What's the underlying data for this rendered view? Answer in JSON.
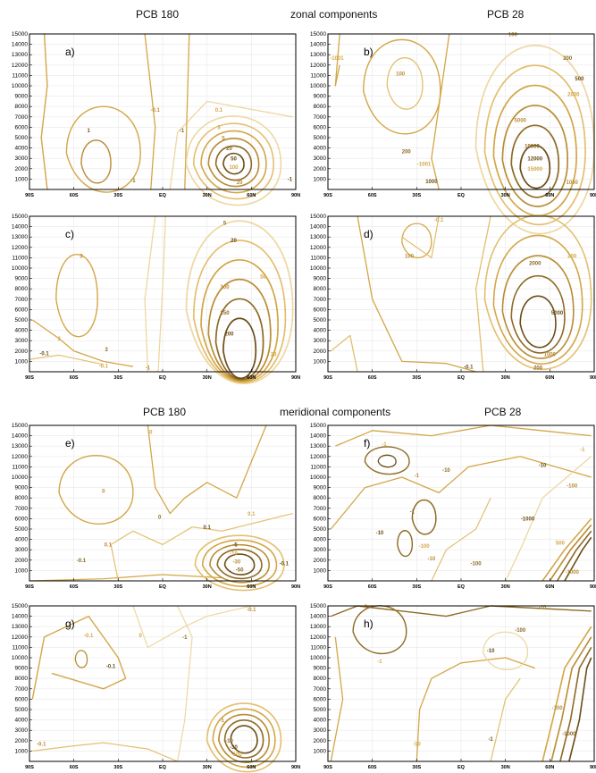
{
  "headers": {
    "top_left": "PCB 180",
    "top_center": "zonal components",
    "top_right": "PCB 28",
    "bottom_left": "PCB 180",
    "bottom_center": "meridional components",
    "bottom_right": "PCB 28"
  },
  "colors": {
    "light": "#eed7a1",
    "pale": "#e3bf6e",
    "mid": "#d3a646",
    "medium": "#b98c34",
    "dark": "#8e6a24",
    "darkest": "#6b4e18"
  },
  "axes": {
    "y_ticks": [
      "15000",
      "14000",
      "13000",
      "12000",
      "11000",
      "10000",
      "9000",
      "8000",
      "7000",
      "6000",
      "5000",
      "4000",
      "3000",
      "2000",
      "1000"
    ],
    "x_ticks": [
      "90S",
      "60S",
      "30S",
      "EQ",
      "30N",
      "60N",
      "90N"
    ],
    "y_range": [
      0,
      15000
    ],
    "x_range": [
      -90,
      90
    ]
  },
  "chart_data": [
    {
      "panel": "a)",
      "type": "contour",
      "component": "zonal",
      "compound": "PCB 180",
      "contour_levels": [
        {
          "label": "0.1",
          "x": 38,
          "y": 7500
        },
        {
          "label": "-0.1",
          "x": -5,
          "y": 7500
        },
        {
          "label": "-1",
          "x": 13,
          "y": 5500
        },
        {
          "label": "1",
          "x": -50,
          "y": 5500
        },
        {
          "label": "3",
          "x": 38,
          "y": 5800
        },
        {
          "label": "5",
          "x": 41,
          "y": 4800
        },
        {
          "label": "20",
          "x": 45,
          "y": 3800
        },
        {
          "label": "50",
          "x": 48,
          "y": 2800
        },
        {
          "label": "100",
          "x": 48,
          "y": 2000
        },
        {
          "label": "20",
          "x": 52,
          "y": 500
        },
        {
          "label": "-1",
          "x": -20,
          "y": 700
        },
        {
          "label": "-1",
          "x": 86,
          "y": 800
        }
      ]
    },
    {
      "panel": "b)",
      "type": "contour",
      "component": "zonal",
      "compound": "PCB 28",
      "contour_levels": [
        {
          "label": "-1001",
          "x": -84,
          "y": 12500
        },
        {
          "label": "100",
          "x": -41,
          "y": 11000
        },
        {
          "label": "200",
          "x": -37,
          "y": 3500
        },
        {
          "label": "1000",
          "x": -20,
          "y": 600
        },
        {
          "label": "-1001",
          "x": -25,
          "y": 2300
        },
        {
          "label": "100",
          "x": 35,
          "y": 14800
        },
        {
          "label": "200",
          "x": 72,
          "y": 12500
        },
        {
          "label": "500",
          "x": 80,
          "y": 10500
        },
        {
          "label": "2000",
          "x": 76,
          "y": 9000
        },
        {
          "label": "5000",
          "x": 40,
          "y": 6500
        },
        {
          "label": "10000",
          "x": 48,
          "y": 4000
        },
        {
          "label": "12000",
          "x": 50,
          "y": 2800
        },
        {
          "label": "15000",
          "x": 50,
          "y": 1800
        },
        {
          "label": "1000",
          "x": 75,
          "y": 500
        }
      ]
    },
    {
      "panel": "c)",
      "type": "contour",
      "component": "zonal",
      "compound": "PCB 180",
      "contour_levels": [
        {
          "label": "3",
          "x": -70,
          "y": 3000
        },
        {
          "label": "3",
          "x": -55,
          "y": 11000
        },
        {
          "label": "3",
          "x": -38,
          "y": 2000
        },
        {
          "label": "-0.1",
          "x": -80,
          "y": 1600
        },
        {
          "label": "-0.1",
          "x": -40,
          "y": 400
        },
        {
          "label": "-1",
          "x": -10,
          "y": 200
        },
        {
          "label": "5",
          "x": 42,
          "y": 14200
        },
        {
          "label": "20",
          "x": 48,
          "y": 12500
        },
        {
          "label": "50",
          "x": 68,
          "y": 9000
        },
        {
          "label": "100",
          "x": 42,
          "y": 8000
        },
        {
          "label": "150",
          "x": 42,
          "y": 5500
        },
        {
          "label": "200",
          "x": 45,
          "y": 3500
        },
        {
          "label": "20",
          "x": 75,
          "y": 1500
        }
      ]
    },
    {
      "panel": "d)",
      "type": "contour",
      "component": "zonal",
      "compound": "PCB 28",
      "contour_levels": [
        {
          "label": "-0.1",
          "x": -15,
          "y": 14500
        },
        {
          "label": "100",
          "x": -35,
          "y": 11000
        },
        {
          "label": "2000",
          "x": 50,
          "y": 10300
        },
        {
          "label": "5000",
          "x": 65,
          "y": 5500
        },
        {
          "label": "200",
          "x": 75,
          "y": 11000
        },
        {
          "label": "1000",
          "x": 60,
          "y": 1500
        },
        {
          "label": "200",
          "x": 52,
          "y": 200
        },
        {
          "label": "-0.1",
          "x": 5,
          "y": 300
        }
      ]
    },
    {
      "panel": "e)",
      "type": "contour",
      "component": "meridional",
      "compound": "PCB 180",
      "contour_levels": [
        {
          "label": "0",
          "x": -8,
          "y": 14200
        },
        {
          "label": "0",
          "x": -40,
          "y": 8500
        },
        {
          "label": "0",
          "x": -2,
          "y": 6000
        },
        {
          "label": "0.1",
          "x": 30,
          "y": 5000
        },
        {
          "label": "0.1",
          "x": 60,
          "y": 6300
        },
        {
          "label": "0.1",
          "x": -37,
          "y": 3300
        },
        {
          "label": "-0.1",
          "x": -55,
          "y": 1800
        },
        {
          "label": "-5",
          "x": 49,
          "y": 3300
        },
        {
          "label": "-10",
          "x": 48,
          "y": 2500
        },
        {
          "label": "-30",
          "x": 50,
          "y": 1700
        },
        {
          "label": "-50",
          "x": 52,
          "y": 900
        },
        {
          "label": "-0.1",
          "x": 82,
          "y": 1500
        }
      ]
    },
    {
      "panel": "f)",
      "type": "contour",
      "component": "meridional",
      "compound": "PCB 28",
      "contour_levels": [
        {
          "label": "-1",
          "x": -52,
          "y": 13000
        },
        {
          "label": "-1",
          "x": -30,
          "y": 10000
        },
        {
          "label": "-10",
          "x": -10,
          "y": 10500
        },
        {
          "label": "-10",
          "x": 55,
          "y": 11000
        },
        {
          "label": "-1",
          "x": 82,
          "y": 12500
        },
        {
          "label": "-100",
          "x": 75,
          "y": 9000
        },
        {
          "label": "-1",
          "x": -33,
          "y": 6500
        },
        {
          "label": "-10",
          "x": -55,
          "y": 4500
        },
        {
          "label": "-100",
          "x": -25,
          "y": 3200
        },
        {
          "label": "-10",
          "x": -20,
          "y": 2000
        },
        {
          "label": "-100",
          "x": 10,
          "y": 1500
        },
        {
          "label": "-1000",
          "x": 45,
          "y": 5800
        },
        {
          "label": "500",
          "x": 67,
          "y": 3500
        },
        {
          "label": "-1000",
          "x": 75,
          "y": 700
        }
      ]
    },
    {
      "panel": "g)",
      "type": "contour",
      "component": "meridional",
      "compound": "PCB 180",
      "contour_levels": [
        {
          "label": "-0.1",
          "x": -50,
          "y": 12000
        },
        {
          "label": "-0.1",
          "x": 60,
          "y": 14500
        },
        {
          "label": "-1",
          "x": 15,
          "y": 11800
        },
        {
          "label": "-0.1",
          "x": -35,
          "y": 9000
        },
        {
          "label": "0",
          "x": -15,
          "y": 12000
        },
        {
          "label": "-1",
          "x": 40,
          "y": 3800
        },
        {
          "label": "-10",
          "x": 45,
          "y": 1800
        },
        {
          "label": "-30",
          "x": 48,
          "y": 1200
        },
        {
          "label": "-100",
          "x": 50,
          "y": 500
        },
        {
          "label": "-0.1",
          "x": -82,
          "y": 1500
        }
      ]
    },
    {
      "panel": "h)",
      "type": "contour",
      "component": "meridional",
      "compound": "PCB 28",
      "contour_levels": [
        {
          "label": "-1",
          "x": -65,
          "y": 14800
        },
        {
          "label": "-10",
          "x": 55,
          "y": 14700
        },
        {
          "label": "-100",
          "x": 40,
          "y": 12500
        },
        {
          "label": "-10",
          "x": 20,
          "y": 10500
        },
        {
          "label": "-1",
          "x": -55,
          "y": 9500
        },
        {
          "label": "-100",
          "x": 65,
          "y": 5000
        },
        {
          "label": "-1000",
          "x": 73,
          "y": 2500
        },
        {
          "label": "-1",
          "x": 20,
          "y": 2000
        },
        {
          "label": "-10",
          "x": -30,
          "y": 1500
        }
      ]
    }
  ]
}
